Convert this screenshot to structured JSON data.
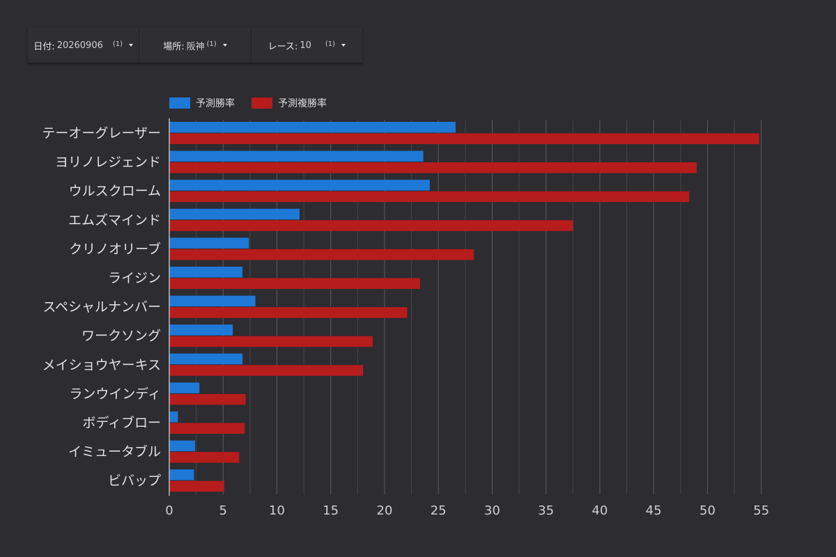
{
  "filters": [
    {
      "label": "日付",
      "value": "20260906",
      "count": "(1)"
    },
    {
      "label": "場所",
      "value": "阪神",
      "count": "(1)"
    },
    {
      "label": "レース",
      "value": "10",
      "count": "(1)"
    }
  ],
  "chart_data": {
    "type": "bar",
    "orientation": "horizontal",
    "categories": [
      "テーオーグレーザー",
      "ヨリノレジェンド",
      "ウルスクローム",
      "エムズマインド",
      "クリノオリーブ",
      "ライジン",
      "スペシャルナンバー",
      "ワークソング",
      "メイショウヤーキス",
      "ランウインディ",
      "ボディブロー",
      "イミュータブル",
      "ビバップ"
    ],
    "series": [
      {
        "name": "予測勝率",
        "color": "#1e78d6",
        "values": [
          26.6,
          23.6,
          24.2,
          12.1,
          7.4,
          6.8,
          8.0,
          5.9,
          6.8,
          2.8,
          0.8,
          2.4,
          2.3
        ]
      },
      {
        "name": "予測複勝率",
        "color": "#b71c1c",
        "values": [
          54.8,
          49.0,
          48.3,
          37.5,
          28.3,
          23.3,
          22.1,
          18.9,
          18.0,
          7.1,
          7.0,
          6.5,
          5.1
        ]
      }
    ],
    "xlim": [
      0,
      55
    ],
    "xticks": [
      "0",
      "5",
      "10",
      "15",
      "20",
      "25",
      "30",
      "35",
      "40",
      "45",
      "50",
      "55"
    ],
    "legend_position": "top-left",
    "grid": true
  }
}
